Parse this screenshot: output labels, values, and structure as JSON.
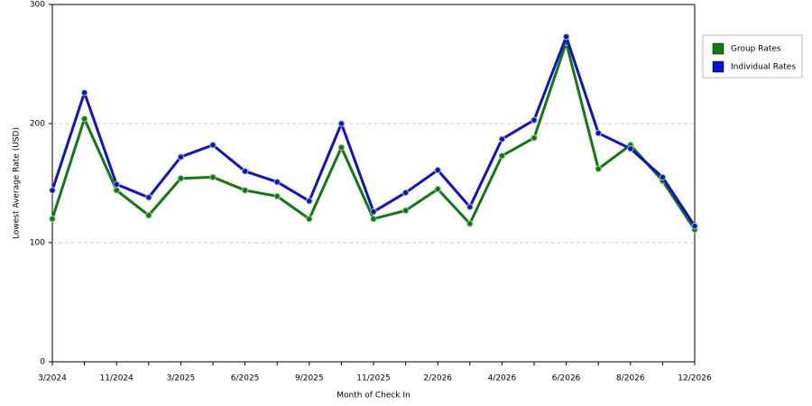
{
  "chart_data": {
    "type": "line",
    "x_label": "Month of Check In",
    "y_label": "Lowest Average Rate (USD)",
    "categories": [
      "3/2024",
      null,
      "11/2024",
      null,
      "3/2025",
      null,
      "6/2025",
      null,
      "9/2025",
      null,
      "11/2025",
      null,
      "2/2026",
      null,
      "4/2026",
      null,
      "6/2026",
      null,
      "8/2026",
      null,
      "12/2026"
    ],
    "series": [
      {
        "name": "Group Rates",
        "color": "#107a10",
        "values": [
          120,
          204,
          144,
          123,
          154,
          155,
          144,
          139,
          120,
          180,
          120,
          127,
          145,
          116,
          173,
          188,
          268,
          162,
          182,
          152,
          111
        ]
      },
      {
        "name": "Individual Rates",
        "color": "#1010d0",
        "values": [
          144,
          226,
          149,
          138,
          172,
          182,
          160,
          151,
          135,
          200,
          126,
          142,
          161,
          130,
          187,
          203,
          273,
          192,
          179,
          155,
          114
        ]
      }
    ],
    "ylim": [
      0,
      300
    ],
    "yticks": [
      0,
      100,
      200,
      300
    ],
    "grid": true,
    "legend": "right"
  }
}
